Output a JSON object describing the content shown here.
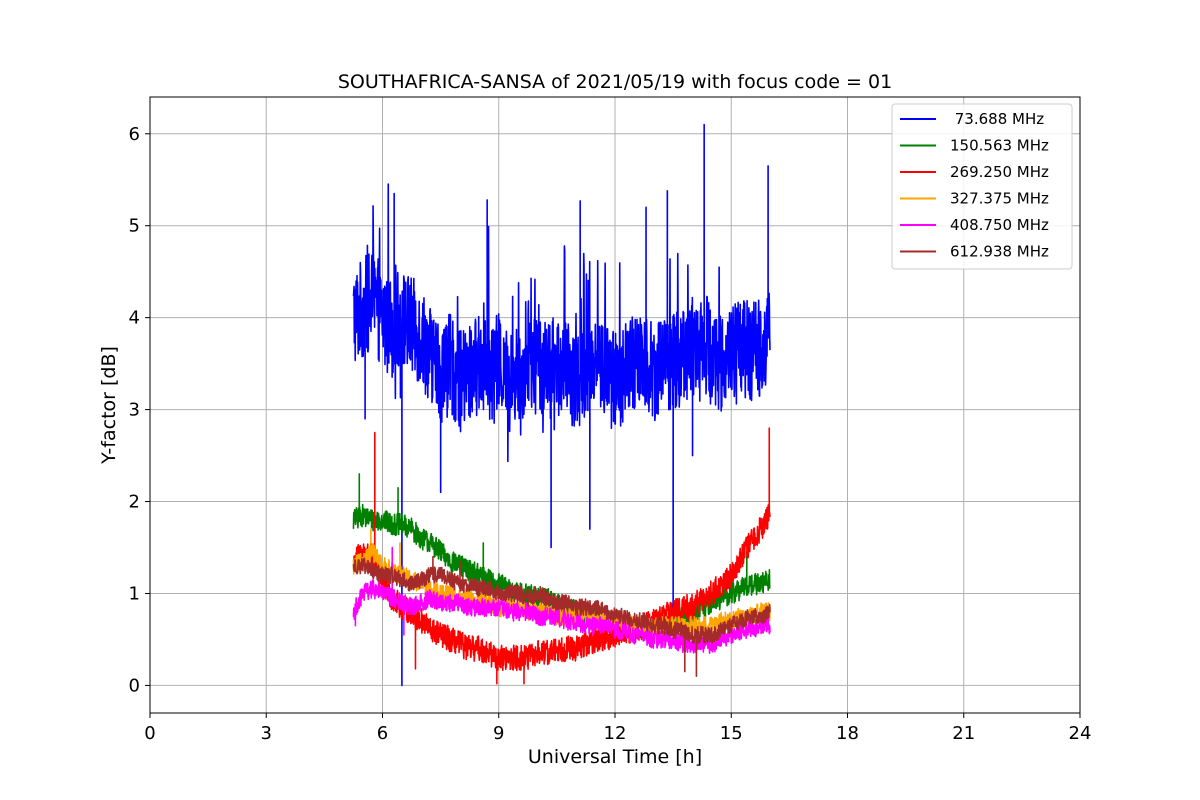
{
  "chart_data": {
    "type": "line",
    "title": "SOUTHAFRICA-SANSA of 2021/05/19 with focus code = 01",
    "xlabel": "Universal Time [h]",
    "ylabel": "Y-factor [dB]",
    "xlim": [
      0,
      24
    ],
    "ylim": [
      -0.3,
      6.4
    ],
    "xticks": [
      0,
      3,
      6,
      9,
      12,
      15,
      18,
      21,
      24
    ],
    "yticks": [
      0,
      1,
      2,
      3,
      4,
      5,
      6
    ],
    "grid": true,
    "legend_position": "top-right",
    "series": [
      {
        "name": " 73.688 MHz",
        "color": "#0000ff",
        "x": [
          5.25,
          5.5,
          5.75,
          6.0,
          6.25,
          6.5,
          6.75,
          7.0,
          7.25,
          7.5,
          7.75,
          8.0,
          8.25,
          8.5,
          8.75,
          9.0,
          9.25,
          9.5,
          9.75,
          10.0,
          10.25,
          10.5,
          10.75,
          11.0,
          11.25,
          11.5,
          11.75,
          12.0,
          12.25,
          12.5,
          12.75,
          13.0,
          13.25,
          13.5,
          13.75,
          14.0,
          14.25,
          14.5,
          14.75,
          15.0,
          15.25,
          15.5,
          15.75,
          16.0
        ],
        "y": [
          4.0,
          4.1,
          4.2,
          4.0,
          3.9,
          4.0,
          3.9,
          3.8,
          3.6,
          3.4,
          3.5,
          3.3,
          3.4,
          3.5,
          3.4,
          3.5,
          3.3,
          3.4,
          3.5,
          3.5,
          3.4,
          3.5,
          3.4,
          3.3,
          3.5,
          3.6,
          3.4,
          3.3,
          3.4,
          3.5,
          3.6,
          3.4,
          3.6,
          3.5,
          3.6,
          3.7,
          3.8,
          3.6,
          3.5,
          3.6,
          3.7,
          3.6,
          3.7,
          3.8
        ],
        "dips": [
          [
            5.55,
            2.9
          ],
          [
            6.5,
            0.0
          ],
          [
            7.5,
            2.1
          ],
          [
            10.35,
            1.5
          ],
          [
            11.35,
            1.7
          ],
          [
            13.5,
            0.7
          ],
          [
            14.0,
            2.5
          ]
        ],
        "spikes": [
          [
            6.3,
            5.35
          ],
          [
            8.7,
            5.28
          ],
          [
            11.1,
            5.27
          ],
          [
            12.8,
            5.2
          ],
          [
            13.35,
            5.38
          ],
          [
            14.3,
            6.1
          ],
          [
            15.95,
            5.65
          ]
        ]
      },
      {
        "name": "150.563 MHz",
        "color": "#008000",
        "x": [
          5.25,
          5.5,
          5.75,
          6.0,
          6.25,
          6.5,
          6.75,
          7.0,
          7.25,
          7.5,
          7.75,
          8.0,
          8.25,
          8.5,
          8.75,
          9.0,
          9.25,
          9.5,
          9.75,
          10.0,
          10.25,
          10.5,
          10.75,
          11.0,
          11.25,
          11.5,
          11.75,
          12.0,
          12.25,
          12.5,
          12.75,
          13.0,
          13.25,
          13.5,
          13.75,
          14.0,
          14.25,
          14.5,
          14.75,
          15.0,
          15.25,
          15.5,
          15.75,
          16.0
        ],
        "y": [
          1.8,
          1.85,
          1.8,
          1.8,
          1.75,
          1.75,
          1.7,
          1.6,
          1.55,
          1.45,
          1.35,
          1.3,
          1.25,
          1.2,
          1.15,
          1.1,
          1.05,
          1.0,
          1.0,
          0.95,
          0.95,
          0.9,
          0.85,
          0.8,
          0.75,
          0.75,
          0.7,
          0.7,
          0.65,
          0.6,
          0.6,
          0.65,
          0.7,
          0.7,
          0.75,
          0.8,
          0.85,
          0.9,
          0.95,
          1.0,
          1.05,
          1.1,
          1.1,
          1.15
        ],
        "dips": [],
        "spikes": [
          [
            5.4,
            2.3
          ],
          [
            6.4,
            2.15
          ],
          [
            8.6,
            1.55
          ],
          [
            15.4,
            1.45
          ]
        ]
      },
      {
        "name": "269.250 MHz",
        "color": "#ff0000",
        "x": [
          5.25,
          5.5,
          5.75,
          6.0,
          6.25,
          6.5,
          6.75,
          7.0,
          7.25,
          7.5,
          7.75,
          8.0,
          8.25,
          8.5,
          8.75,
          9.0,
          9.25,
          9.5,
          9.75,
          10.0,
          10.25,
          10.5,
          10.75,
          11.0,
          11.25,
          11.5,
          11.75,
          12.0,
          12.25,
          12.5,
          12.75,
          13.0,
          13.25,
          13.5,
          13.75,
          14.0,
          14.25,
          14.5,
          14.75,
          15.0,
          15.25,
          15.5,
          15.75,
          16.0
        ],
        "y": [
          1.35,
          1.45,
          1.4,
          1.1,
          0.95,
          0.85,
          0.8,
          0.7,
          0.6,
          0.55,
          0.5,
          0.45,
          0.4,
          0.4,
          0.35,
          0.3,
          0.3,
          0.3,
          0.3,
          0.35,
          0.35,
          0.4,
          0.4,
          0.4,
          0.45,
          0.5,
          0.5,
          0.55,
          0.6,
          0.6,
          0.65,
          0.7,
          0.75,
          0.8,
          0.85,
          0.85,
          0.95,
          1.0,
          1.1,
          1.2,
          1.4,
          1.55,
          1.7,
          1.85
        ],
        "dips": [
          [
            6.85,
            0.18
          ],
          [
            8.95,
            0.02
          ],
          [
            9.65,
            0.02
          ]
        ],
        "spikes": [
          [
            5.8,
            2.75
          ],
          [
            15.98,
            2.8
          ]
        ]
      },
      {
        "name": "327.375 MHz",
        "color": "#ffa500",
        "x": [
          5.25,
          5.5,
          5.75,
          6.0,
          6.25,
          6.5,
          6.75,
          7.0,
          7.25,
          7.5,
          7.75,
          8.0,
          8.25,
          8.5,
          8.75,
          9.0,
          9.25,
          9.5,
          9.75,
          10.0,
          10.25,
          10.5,
          10.75,
          11.0,
          11.25,
          11.5,
          11.75,
          12.0,
          12.25,
          12.5,
          12.75,
          13.0,
          13.25,
          13.5,
          13.75,
          14.0,
          14.25,
          14.5,
          14.75,
          15.0,
          15.25,
          15.5,
          15.75,
          16.0
        ],
        "y": [
          1.3,
          1.35,
          1.45,
          1.3,
          1.25,
          1.2,
          1.15,
          1.1,
          1.05,
          1.0,
          1.0,
          0.95,
          0.95,
          0.9,
          0.9,
          0.85,
          0.85,
          0.85,
          0.8,
          0.8,
          0.8,
          0.75,
          0.75,
          0.75,
          0.75,
          0.7,
          0.7,
          0.7,
          0.7,
          0.65,
          0.65,
          0.65,
          0.65,
          0.65,
          0.65,
          0.65,
          0.65,
          0.65,
          0.7,
          0.7,
          0.75,
          0.75,
          0.8,
          0.8
        ],
        "dips": [],
        "spikes": [
          [
            5.7,
            1.7
          ],
          [
            6.45,
            1.55
          ]
        ]
      },
      {
        "name": "408.750 MHz",
        "color": "#ff00ff",
        "x": [
          5.25,
          5.5,
          5.75,
          6.0,
          6.25,
          6.5,
          6.75,
          7.0,
          7.25,
          7.5,
          7.75,
          8.0,
          8.25,
          8.5,
          8.75,
          9.0,
          9.25,
          9.5,
          9.75,
          10.0,
          10.25,
          10.5,
          10.75,
          11.0,
          11.25,
          11.5,
          11.75,
          12.0,
          12.25,
          12.5,
          12.75,
          13.0,
          13.25,
          13.5,
          13.75,
          14.0,
          14.25,
          14.5,
          14.75,
          15.0,
          15.25,
          15.5,
          15.75,
          16.0
        ],
        "y": [
          0.8,
          1.0,
          1.05,
          1.0,
          0.95,
          0.9,
          0.85,
          0.9,
          0.95,
          0.9,
          0.9,
          0.9,
          0.85,
          0.85,
          0.85,
          0.85,
          0.8,
          0.8,
          0.8,
          0.75,
          0.75,
          0.75,
          0.7,
          0.7,
          0.65,
          0.65,
          0.65,
          0.6,
          0.6,
          0.55,
          0.55,
          0.5,
          0.5,
          0.5,
          0.45,
          0.45,
          0.45,
          0.45,
          0.5,
          0.55,
          0.6,
          0.6,
          0.65,
          0.65
        ],
        "dips": [
          [
            5.3,
            0.65
          ],
          [
            6.55,
            0.55
          ]
        ],
        "spikes": [
          [
            5.9,
            1.25
          ],
          [
            6.25,
            1.5
          ]
        ]
      },
      {
        "name": "612.938 MHz",
        "color": "#a52a2a",
        "x": [
          5.25,
          5.5,
          5.75,
          6.0,
          6.25,
          6.5,
          6.75,
          7.0,
          7.25,
          7.5,
          7.75,
          8.0,
          8.25,
          8.5,
          8.75,
          9.0,
          9.25,
          9.5,
          9.75,
          10.0,
          10.25,
          10.5,
          10.75,
          11.0,
          11.25,
          11.5,
          11.75,
          12.0,
          12.25,
          12.5,
          12.75,
          13.0,
          13.25,
          13.5,
          13.75,
          14.0,
          14.25,
          14.5,
          14.75,
          15.0,
          15.25,
          15.5,
          15.75,
          16.0
        ],
        "y": [
          1.3,
          1.3,
          1.25,
          1.2,
          1.2,
          1.15,
          1.1,
          1.15,
          1.2,
          1.2,
          1.15,
          1.1,
          1.1,
          1.05,
          1.05,
          1.0,
          1.0,
          1.0,
          0.95,
          1.0,
          0.95,
          0.9,
          0.9,
          0.85,
          0.85,
          0.85,
          0.8,
          0.75,
          0.75,
          0.7,
          0.7,
          0.65,
          0.65,
          0.6,
          0.6,
          0.55,
          0.55,
          0.55,
          0.6,
          0.65,
          0.7,
          0.75,
          0.75,
          0.8
        ],
        "dips": [
          [
            13.8,
            0.15
          ],
          [
            14.1,
            0.1
          ]
        ],
        "spikes": [
          [
            7.3,
            1.4
          ],
          [
            8.0,
            1.35
          ]
        ]
      }
    ]
  }
}
